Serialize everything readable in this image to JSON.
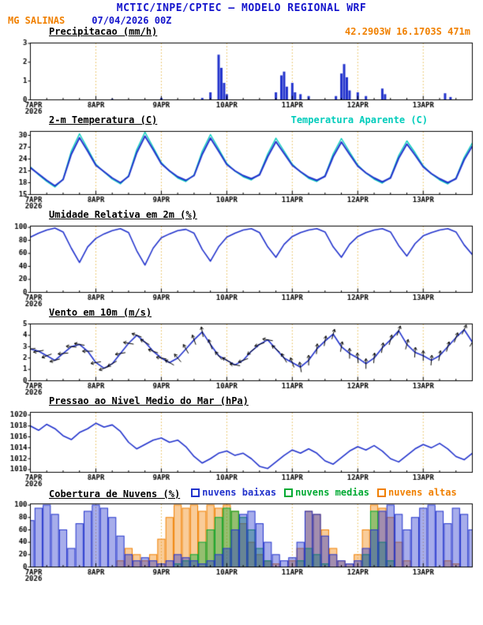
{
  "header": {
    "title": "MCTIC/INPE/CPTEC — MODELO REGIONAL WRF",
    "station": "MG SALINAS",
    "run_datetime": "07/04/2026 00Z",
    "location": "42.2903W 16.1703S 471m"
  },
  "colors": {
    "title_blue": "#1414cc",
    "orange": "#f08000",
    "plot_blue": "#2233cc",
    "cyan": "#00ccbb",
    "green": "#00aa33",
    "grid_dash": "#e6b84c",
    "axis": "#000000"
  },
  "chart_data": {
    "x_axis": {
      "step_hours": 3,
      "total_hours": 162,
      "ticks": [
        {
          "h": 0,
          "label": "7APR",
          "sub": "2026"
        },
        {
          "h": 24,
          "label": "8APR"
        },
        {
          "h": 48,
          "label": "9APR"
        },
        {
          "h": 72,
          "label": "10APR"
        },
        {
          "h": 96,
          "label": "11APR"
        },
        {
          "h": 120,
          "label": "12APR"
        },
        {
          "h": 144,
          "label": "13APR"
        }
      ]
    },
    "panels": [
      {
        "id": "precip",
        "title": "Precipitacao (mm/h)",
        "type": "bars",
        "ylim": [
          0,
          3.02
        ],
        "yticks": [
          0,
          1,
          2,
          3
        ],
        "bar_color": "#2233cc",
        "bars": [
          [
            30,
            0.05
          ],
          [
            48,
            0.1
          ],
          [
            63,
            0.1
          ],
          [
            66,
            0.4
          ],
          [
            69,
            2.4
          ],
          [
            70,
            1.7
          ],
          [
            71,
            0.9
          ],
          [
            72,
            0.3
          ],
          [
            90,
            0.4
          ],
          [
            92,
            1.3
          ],
          [
            93,
            1.5
          ],
          [
            94,
            0.7
          ],
          [
            96,
            0.9
          ],
          [
            97,
            0.4
          ],
          [
            99,
            0.3
          ],
          [
            102,
            0.2
          ],
          [
            112,
            0.2
          ],
          [
            114,
            1.4
          ],
          [
            115,
            1.9
          ],
          [
            116,
            1.2
          ],
          [
            117,
            0.5
          ],
          [
            120,
            0.4
          ],
          [
            123,
            0.2
          ],
          [
            129,
            0.6
          ],
          [
            130,
            0.3
          ],
          [
            152,
            0.35
          ],
          [
            154,
            0.15
          ]
        ]
      },
      {
        "id": "temp",
        "title": "2-m Temperatura (C)",
        "right_label": "Temperatura Aparente (C)",
        "type": "line",
        "ylim": [
          15,
          31
        ],
        "yticks": [
          15,
          18,
          21,
          24,
          27,
          30
        ],
        "series": [
          {
            "name": "Temperatura Aparente (C)",
            "color": "#00ccbb",
            "width": 1.4,
            "values": [
              22.0,
              20.0,
              18.3,
              16.9,
              18.9,
              26.0,
              30.4,
              26.6,
              22.7,
              20.7,
              18.9,
              17.7,
              19.8,
              26.4,
              30.8,
              27.0,
              23.1,
              20.9,
              19.2,
              18.3,
              20.0,
              26.0,
              30.2,
              26.6,
              22.9,
              20.9,
              19.5,
              18.7,
              20.2,
              25.3,
              29.3,
              26.0,
              22.7,
              20.7,
              19.1,
              18.3,
              19.8,
              25.3,
              29.2,
              25.8,
              22.5,
              20.4,
              18.9,
              17.9,
              19.4,
              24.9,
              28.6,
              25.6,
              22.3,
              20.2,
              18.7,
              17.7,
              19.2,
              24.4,
              28.1
            ]
          },
          {
            "name": "2-m Temperatura (C)",
            "color": "#2233cc",
            "width": 2.0,
            "values": [
              21.8,
              20.2,
              18.6,
              17.2,
              18.8,
              25.2,
              29.4,
              26.0,
              22.4,
              20.8,
              19.2,
              18.0,
              19.6,
              25.6,
              29.8,
              26.4,
              22.8,
              21.0,
              19.5,
              18.6,
              19.8,
              25.2,
              29.3,
              26.0,
              22.6,
              21.0,
              19.8,
              19.0,
              20.0,
              24.6,
              28.4,
              25.4,
              22.4,
              20.8,
              19.4,
              18.6,
              19.6,
              24.6,
              28.3,
              25.2,
              22.2,
              20.5,
              19.2,
              18.2,
              19.2,
              24.2,
              27.8,
              25.0,
              22.0,
              20.3,
              19.0,
              18.0,
              19.0,
              23.8,
              27.3
            ]
          }
        ]
      },
      {
        "id": "rh",
        "title": "Umidade Relativa em 2m (%)",
        "type": "line",
        "ylim": [
          0,
          102
        ],
        "yticks": [
          0,
          20,
          40,
          60,
          80,
          100
        ],
        "series": [
          {
            "name": "Umidade Relativa",
            "color": "#2233cc",
            "width": 1.6,
            "values": [
              85,
              91,
              96,
              99,
              93,
              68,
              46,
              70,
              83,
              90,
              95,
              98,
              92,
              64,
              42,
              68,
              84,
              90,
              95,
              97,
              91,
              66,
              48,
              70,
              85,
              91,
              96,
              98,
              92,
              70,
              54,
              74,
              86,
              92,
              96,
              98,
              93,
              70,
              54,
              74,
              86,
              92,
              96,
              98,
              93,
              72,
              56,
              75,
              87,
              92,
              96,
              98,
              93,
              73,
              58
            ]
          }
        ]
      },
      {
        "id": "wind",
        "title": "Vento em 10m (m/s)",
        "type": "wind",
        "ylim": [
          0,
          5
        ],
        "yticks": [
          0,
          1,
          2,
          3,
          4,
          5
        ],
        "arrow_color": "#000000",
        "series": [
          {
            "name": "Velocidade do vento",
            "color": "#2233cc",
            "width": 1.6,
            "values": [
              2.8,
              2.6,
              2.2,
              1.8,
              2.4,
              3.0,
              3.2,
              2.6,
              1.6,
              1.1,
              1.5,
              2.4,
              3.3,
              4.0,
              3.4,
              2.6,
              2.0,
              1.6,
              2.0,
              2.8,
              3.6,
              4.3,
              3.2,
              2.2,
              1.8,
              1.4,
              1.8,
              2.6,
              3.2,
              3.6,
              2.8,
              2.0,
              1.6,
              1.2,
              1.8,
              2.8,
              3.5,
              4.1,
              3.0,
              2.4,
              2.0,
              1.5,
              2.0,
              2.9,
              3.6,
              4.4,
              3.2,
              2.5,
              2.2,
              1.8,
              2.2,
              3.0,
              3.8,
              4.5,
              3.4
            ]
          }
        ],
        "dirs_deg": [
          185,
          190,
          200,
          195,
          185,
          175,
          170,
          180,
          190,
          200,
          210,
          190,
          170,
          160,
          150,
          160,
          170,
          150,
          130,
          120,
          110,
          100,
          110,
          130,
          150,
          170,
          200,
          220,
          200,
          170,
          140,
          120,
          110,
          100,
          90,
          85,
          80,
          75,
          80,
          90,
          95,
          90,
          85,
          80,
          75,
          70,
          75,
          85,
          90,
          85,
          80,
          75,
          70,
          65,
          60
        ]
      },
      {
        "id": "pres",
        "title": "Pressao ao Nivel Medio do Mar (hPa)",
        "type": "line",
        "ylim": [
          1009.5,
          1020.5
        ],
        "yticks": [
          1010,
          1012,
          1014,
          1016,
          1018,
          1020
        ],
        "series": [
          {
            "name": "PNMM",
            "color": "#2233cc",
            "width": 1.6,
            "values": [
              1018.0,
              1017.2,
              1018.3,
              1017.5,
              1016.2,
              1015.5,
              1016.8,
              1017.5,
              1018.5,
              1017.8,
              1018.2,
              1017.0,
              1015.0,
              1013.8,
              1014.6,
              1015.4,
              1015.8,
              1015.0,
              1015.4,
              1014.2,
              1012.4,
              1011.2,
              1012.0,
              1013.0,
              1013.4,
              1012.6,
              1013.0,
              1012.0,
              1010.6,
              1010.2,
              1011.4,
              1012.6,
              1013.6,
              1013.0,
              1013.8,
              1013.0,
              1011.6,
              1011.0,
              1012.2,
              1013.4,
              1014.2,
              1013.6,
              1014.4,
              1013.4,
              1012.0,
              1011.4,
              1012.6,
              1013.8,
              1014.6,
              1014.0,
              1014.8,
              1013.8,
              1012.4,
              1011.8,
              1013.0
            ]
          }
        ]
      },
      {
        "id": "clouds",
        "title": "Cobertura de Nuvens (%)",
        "type": "cloudbars",
        "ylim": [
          0,
          102
        ],
        "yticks": [
          0,
          20,
          40,
          60,
          80,
          100
        ],
        "legend": [
          {
            "label": "nuvens baixas",
            "color": "#2233cc"
          },
          {
            "label": "nuvens medias",
            "color": "#00aa33"
          },
          {
            "label": "nuvens altas",
            "color": "#f08000"
          }
        ],
        "series": [
          {
            "name": "nuvens altas",
            "color": "#f08000",
            "values": [
              0,
              0,
              0,
              0,
              0,
              0,
              0,
              0,
              0,
              0,
              0,
              10,
              30,
              20,
              10,
              20,
              45,
              80,
              100,
              95,
              100,
              90,
              100,
              95,
              100,
              90,
              70,
              40,
              20,
              10,
              5,
              0,
              10,
              30,
              90,
              85,
              60,
              30,
              10,
              5,
              20,
              60,
              100,
              95,
              80,
              40,
              10,
              0,
              0,
              0,
              0,
              10,
              5,
              0,
              0
            ]
          },
          {
            "name": "nuvens medias",
            "color": "#00aa33",
            "values": [
              0,
              0,
              0,
              0,
              0,
              0,
              0,
              0,
              0,
              0,
              0,
              0,
              0,
              0,
              0,
              0,
              0,
              0,
              5,
              10,
              20,
              40,
              60,
              80,
              95,
              90,
              80,
              60,
              30,
              10,
              0,
              0,
              0,
              10,
              30,
              20,
              5,
              0,
              0,
              0,
              0,
              20,
              90,
              40,
              10,
              0,
              0,
              0,
              0,
              0,
              0,
              0,
              0,
              0,
              0
            ]
          },
          {
            "name": "nuvens baixas",
            "color": "#2233cc",
            "values": [
              75,
              95,
              100,
              85,
              60,
              30,
              70,
              90,
              100,
              95,
              80,
              50,
              20,
              10,
              15,
              10,
              5,
              10,
              20,
              15,
              10,
              5,
              10,
              20,
              30,
              60,
              85,
              90,
              70,
              40,
              20,
              10,
              15,
              40,
              90,
              85,
              50,
              20,
              10,
              5,
              10,
              30,
              60,
              90,
              100,
              85,
              60,
              80,
              95,
              100,
              90,
              70,
              95,
              85,
              60
            ]
          }
        ]
      }
    ]
  }
}
